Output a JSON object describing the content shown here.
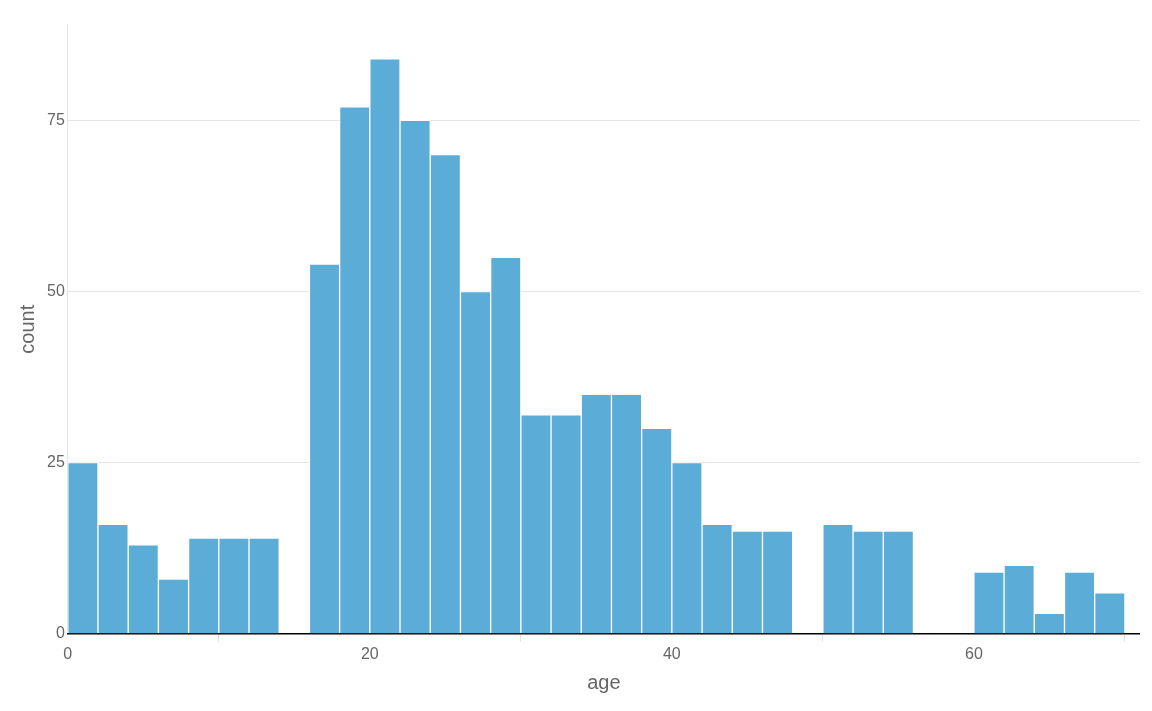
{
  "chart_data": {
    "type": "histogram",
    "bins": [
      0,
      2,
      4,
      6,
      8,
      10,
      12,
      14,
      16,
      18,
      20,
      22,
      24,
      26,
      28,
      30,
      32,
      34,
      36,
      38,
      40,
      42,
      44,
      46,
      48,
      50,
      52,
      54,
      56,
      58,
      60,
      62,
      64,
      66,
      68,
      70
    ],
    "values": [
      25,
      16,
      13,
      8,
      14,
      14,
      14,
      0,
      54,
      77,
      84,
      75,
      70,
      50,
      55,
      32,
      32,
      35,
      35,
      30,
      25,
      16,
      15,
      15,
      0,
      16,
      15,
      15,
      0,
      0,
      9,
      10,
      3,
      9,
      6
    ],
    "color": "#5BACD6",
    "x_label": "age",
    "y_label": "count",
    "xlim": [
      0,
      71
    ],
    "ylim": [
      0,
      89
    ],
    "xticks": [
      0,
      20,
      40,
      60
    ],
    "yticks": [
      0,
      25,
      50,
      75
    ],
    "grid": "y"
  }
}
